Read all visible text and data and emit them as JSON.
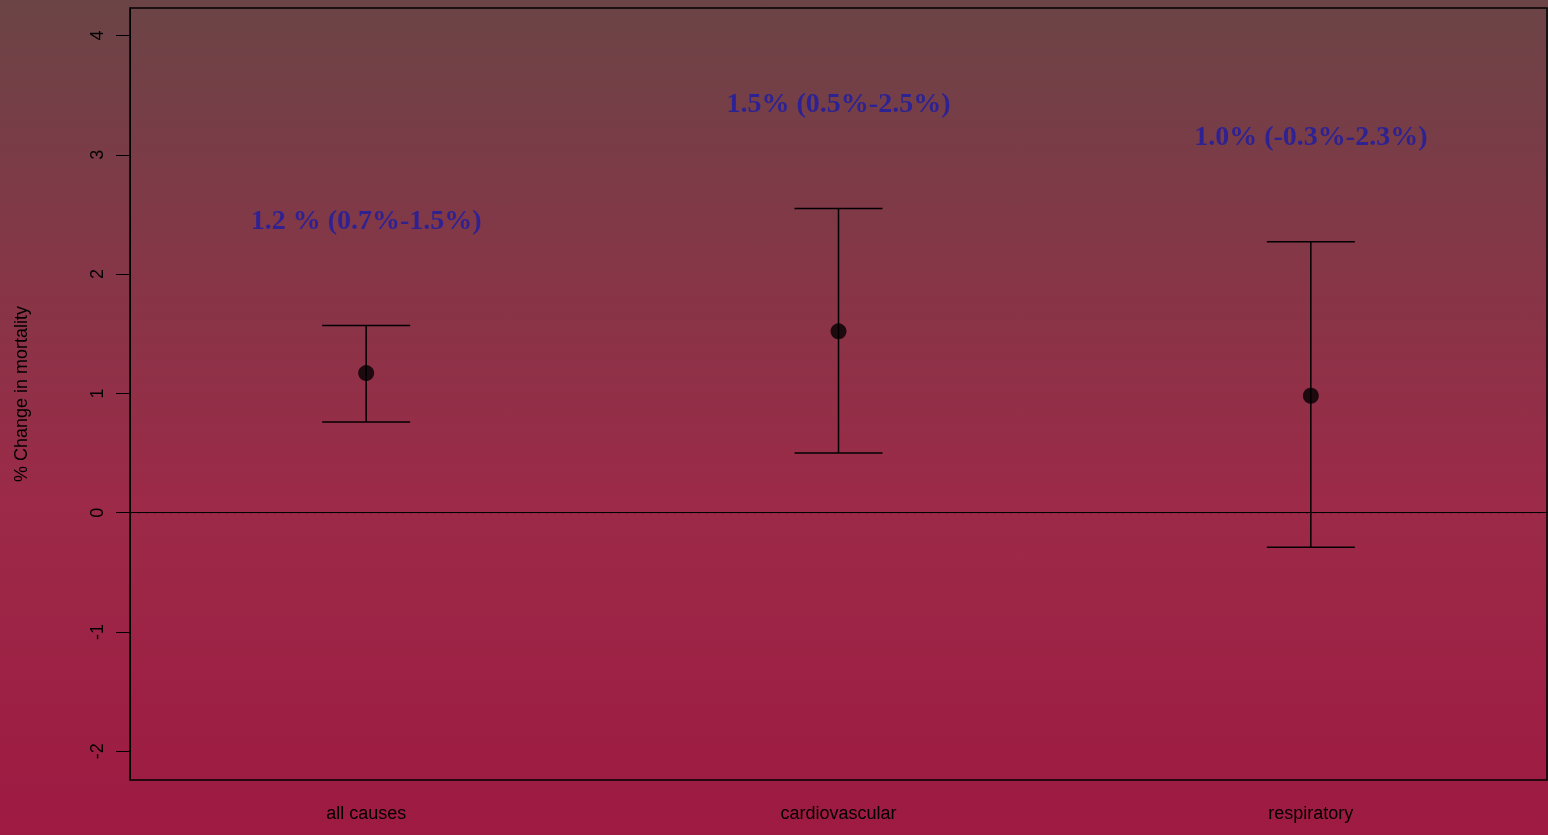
{
  "chart_data": {
    "type": "scatter",
    "ylabel": "% Change in mortality",
    "categories": [
      "all causes",
      "cardiovascular",
      "respiratory"
    ],
    "series": [
      {
        "color": "#000000",
        "values": [
          1.17,
          1.52,
          0.98
        ],
        "errors": [
          [
            0.76,
            1.57
          ],
          [
            0.5,
            2.55
          ],
          [
            -0.29,
            2.27
          ]
        ]
      }
    ],
    "ylim": [
      -2.24,
      4.23
    ],
    "yticks": [
      -2,
      -1,
      0,
      1,
      2,
      3,
      4
    ],
    "marker": "circle",
    "grid": false,
    "ref_lines": [
      {
        "axis": "y",
        "value": 0,
        "line_style": "dotted",
        "color": "#000000"
      }
    ],
    "annotations": [
      "1.2 % (0.7%-1.5%)",
      "1.5% (0.5%-2.5%)",
      "1.0% (-0.3%-2.3%)"
    ]
  }
}
